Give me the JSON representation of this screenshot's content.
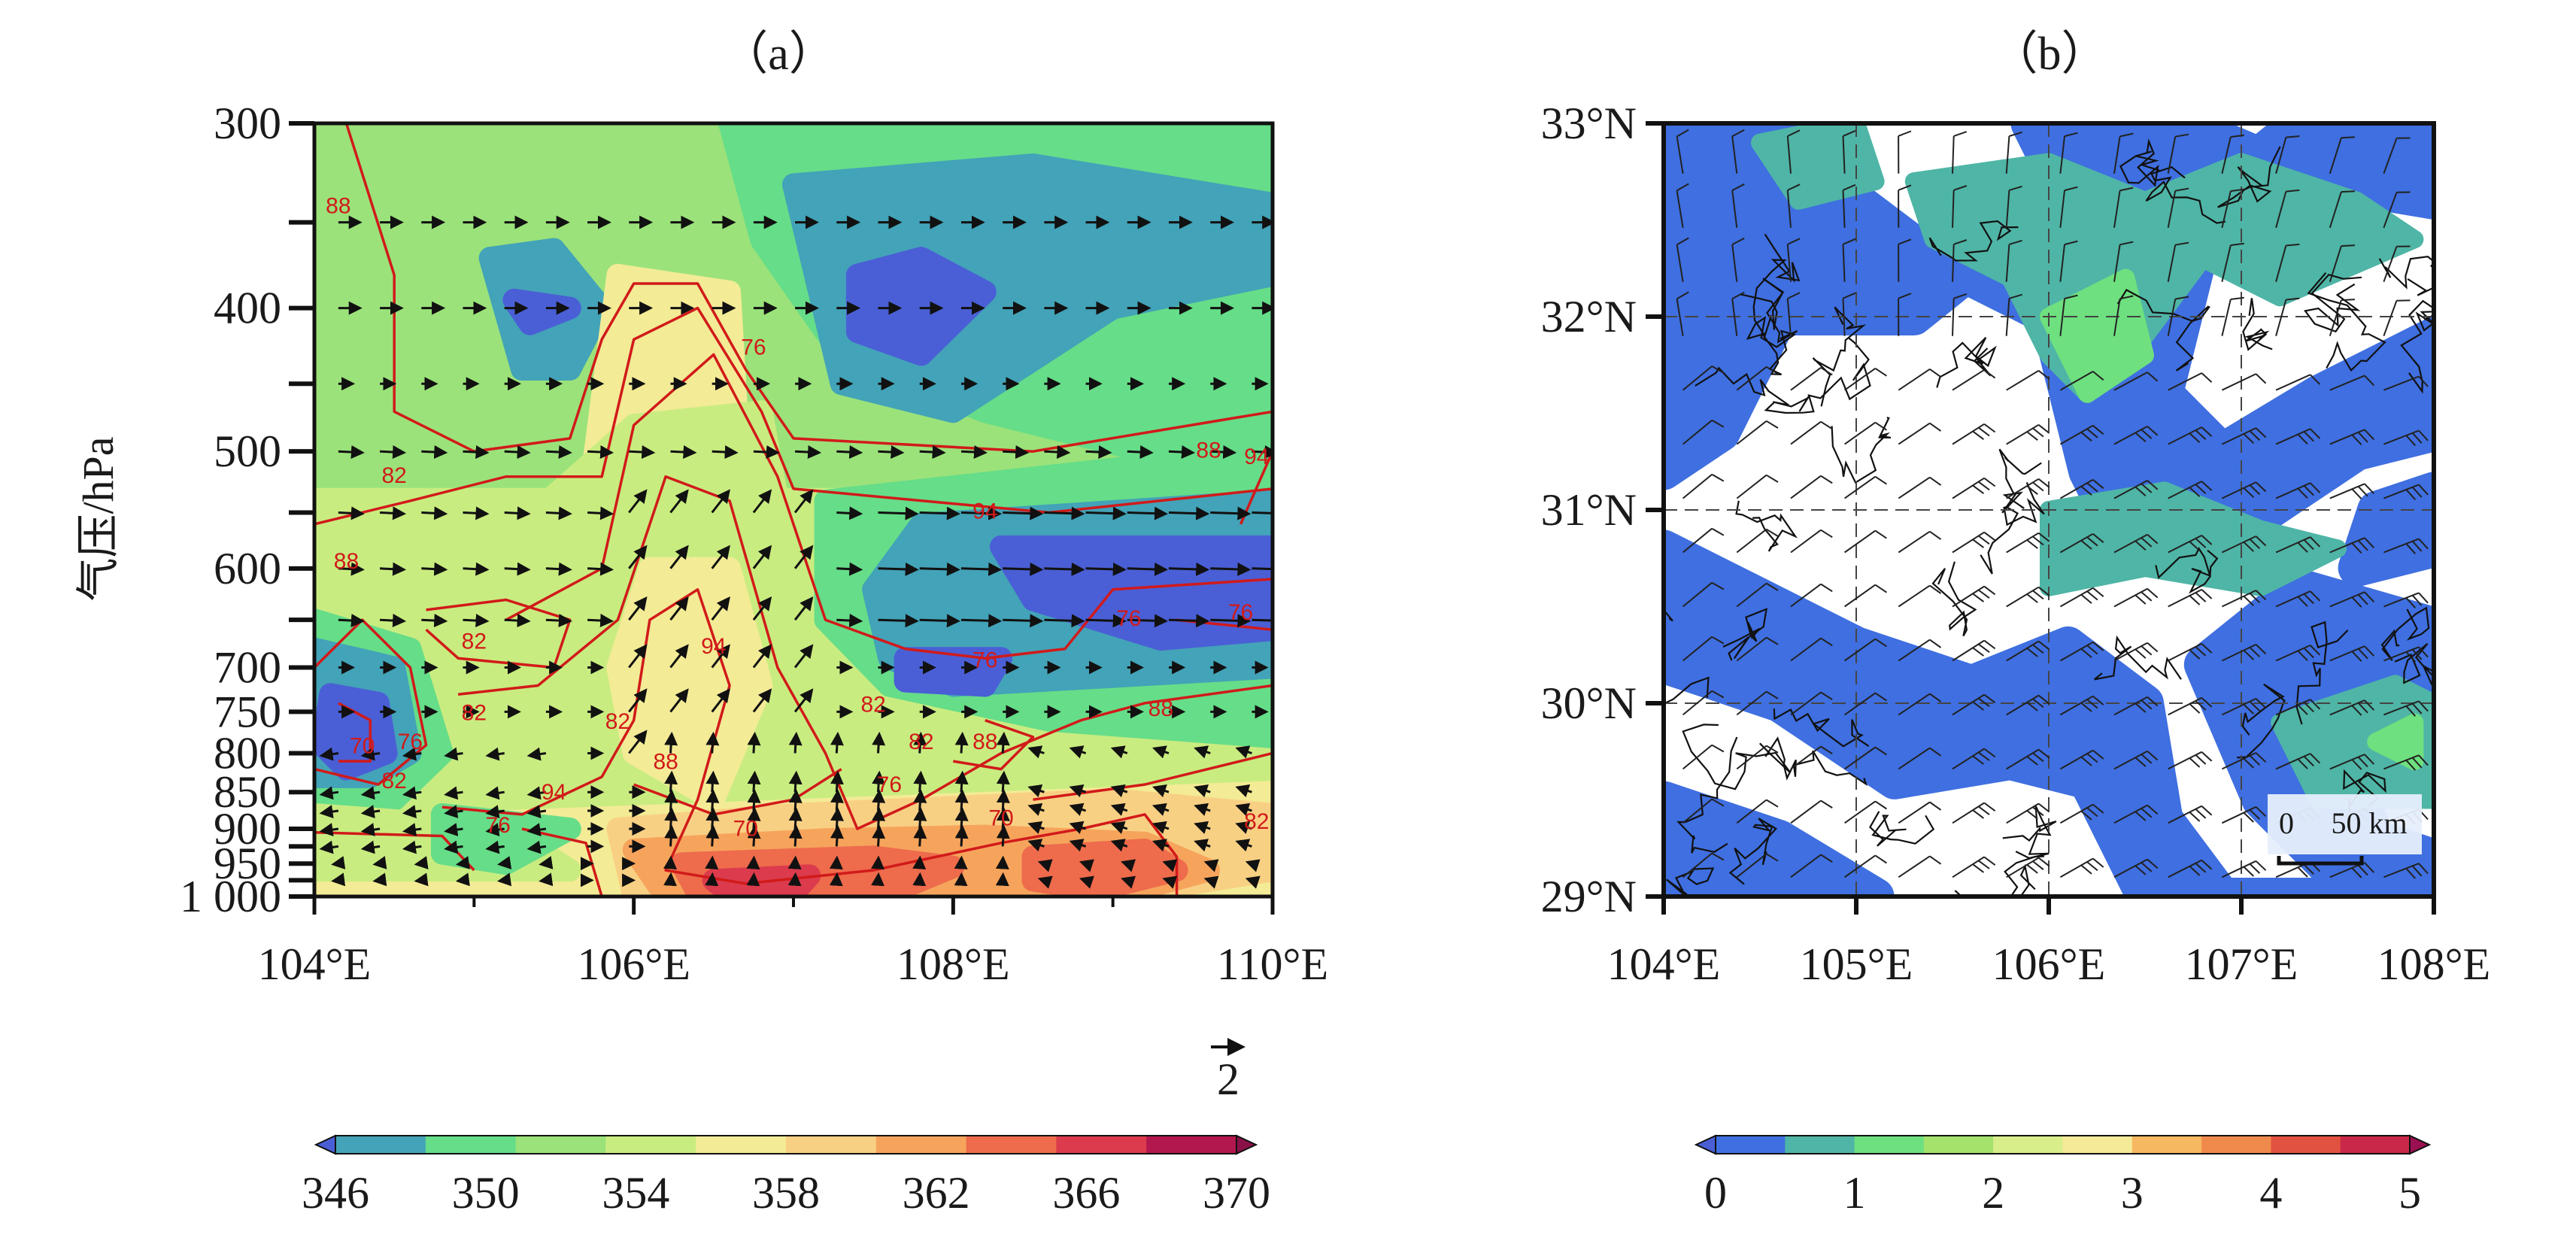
{
  "figure": {
    "colors": {
      "colorbar_a": [
        "#4a5fd6",
        "#43a3b8",
        "#66dd88",
        "#9be27a",
        "#c9ec80",
        "#f3eb96",
        "#f8d084",
        "#f6a45c",
        "#ee6b4c",
        "#db3b4c",
        "#b2174d"
      ],
      "colorbar_b": [
        "#3f6fe0",
        "#4fb5a6",
        "#6ee07f",
        "#a4e26c",
        "#d8ee8a",
        "#f4ea98",
        "#f6b860",
        "#f08a4c",
        "#e25240",
        "#c92848",
        "#9b1050"
      ],
      "contour": "#d11a1a",
      "vector": "#111111"
    }
  },
  "chart_data": [
    {
      "type": "heatmap",
      "title": "（a）",
      "ylabel": "气压/hPa",
      "xlabel": "",
      "x_ticks": [
        "104°E",
        "106°E",
        "108°E",
        "110°E"
      ],
      "x_values": [
        104,
        106,
        108,
        110
      ],
      "xlim": [
        104,
        110
      ],
      "y_ticks": [
        "300",
        "400",
        "500",
        "600",
        "700",
        "750",
        "800",
        "850",
        "900",
        "950",
        "1 000"
      ],
      "y_values": [
        300,
        400,
        500,
        600,
        700,
        750,
        800,
        850,
        900,
        950,
        1000
      ],
      "ylim": [
        1000,
        300
      ],
      "colorbar": {
        "ticks": [
          "346",
          "350",
          "354",
          "358",
          "362",
          "366",
          "370"
        ],
        "levels": [
          346,
          348,
          350,
          352,
          354,
          356,
          358,
          360,
          362,
          364,
          366,
          368,
          370
        ],
        "extend": "both"
      },
      "contour_labels": [
        {
          "text": "88",
          "lon": 104.15,
          "p": 345
        },
        {
          "text": "82",
          "lon": 104.5,
          "p": 525
        },
        {
          "text": "88",
          "lon": 104.2,
          "p": 600
        },
        {
          "text": "82",
          "lon": 105.0,
          "p": 680
        },
        {
          "text": "82",
          "lon": 105.0,
          "p": 760
        },
        {
          "text": "70",
          "lon": 104.3,
          "p": 800
        },
        {
          "text": "76",
          "lon": 104.6,
          "p": 795
        },
        {
          "text": "82",
          "lon": 104.5,
          "p": 845
        },
        {
          "text": "94",
          "lon": 105.5,
          "p": 860
        },
        {
          "text": "76",
          "lon": 105.15,
          "p": 905
        },
        {
          "text": "76",
          "lon": 106.75,
          "p": 430
        },
        {
          "text": "94",
          "lon": 106.5,
          "p": 685
        },
        {
          "text": "82",
          "lon": 105.9,
          "p": 770
        },
        {
          "text": "88",
          "lon": 106.2,
          "p": 820
        },
        {
          "text": "70",
          "lon": 106.7,
          "p": 910
        },
        {
          "text": "94",
          "lon": 108.2,
          "p": 555
        },
        {
          "text": "82",
          "lon": 107.5,
          "p": 750
        },
        {
          "text": "76",
          "lon": 107.6,
          "p": 850
        },
        {
          "text": "82",
          "lon": 107.8,
          "p": 795
        },
        {
          "text": "88",
          "lon": 108.2,
          "p": 795
        },
        {
          "text": "70",
          "lon": 108.3,
          "p": 895
        },
        {
          "text": "76",
          "lon": 108.2,
          "p": 700
        },
        {
          "text": "76",
          "lon": 109.1,
          "p": 656
        },
        {
          "text": "76",
          "lon": 109.8,
          "p": 650
        },
        {
          "text": "88",
          "lon": 109.6,
          "p": 505
        },
        {
          "text": "94",
          "lon": 109.9,
          "p": 510
        },
        {
          "text": "88",
          "lon": 109.3,
          "p": 755
        },
        {
          "text": "82",
          "lon": 109.9,
          "p": 900
        }
      ],
      "vector_reference": "2"
    },
    {
      "type": "heatmap",
      "title": "（b）",
      "x_ticks": [
        "104°E",
        "105°E",
        "106°E",
        "107°E",
        "108°E"
      ],
      "x_values": [
        104,
        105,
        106,
        107,
        108
      ],
      "xlim": [
        104,
        108
      ],
      "y_ticks": [
        "33°N",
        "32°N",
        "31°N",
        "30°N",
        "29°N"
      ],
      "y_values": [
        33,
        32,
        31,
        30,
        29
      ],
      "ylim": [
        29,
        33
      ],
      "grid": true,
      "colorbar": {
        "ticks": [
          "0",
          "1",
          "2",
          "3",
          "4",
          "5"
        ],
        "levels": [
          0,
          0.5,
          1,
          1.5,
          2,
          2.5,
          3,
          3.5,
          4,
          4.5,
          5
        ],
        "extend": "both"
      },
      "scale_bar": {
        "start_label": "0",
        "end_label": "50 km"
      }
    }
  ]
}
